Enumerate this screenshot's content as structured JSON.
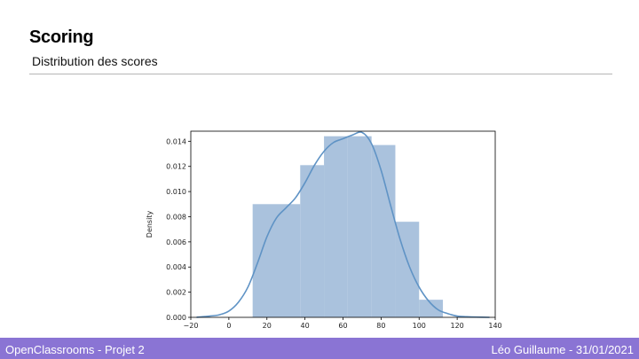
{
  "slide": {
    "title": "Scoring",
    "subtitle": "Distribution des scores"
  },
  "footer": {
    "left": "OpenClassrooms - Projet 2",
    "right": "Léo Guillaume - 31/01/2021"
  },
  "colors": {
    "footer_bg": "#8a74d4",
    "bar_fill": "#a5bfdb",
    "kde_line": "#5f93c5"
  },
  "chart_data": {
    "type": "bar",
    "ylabel": "Density",
    "xlim": [
      -20,
      140
    ],
    "ylim": [
      0,
      0.0148
    ],
    "xticks": [
      -20,
      0,
      20,
      40,
      60,
      80,
      100,
      120,
      140
    ],
    "yticks": [
      0.0,
      0.002,
      0.004,
      0.006,
      0.008,
      0.01,
      0.012,
      0.014
    ],
    "ytick_labels": [
      "0.000",
      "0.002",
      "0.004",
      "0.006",
      "0.008",
      "0.010",
      "0.012",
      "0.014"
    ],
    "bins": [
      {
        "x0": 12.5,
        "x1": 37.5,
        "density": 0.009
      },
      {
        "x0": 37.5,
        "x1": 50.0,
        "density": 0.0121
      },
      {
        "x0": 50.0,
        "x1": 62.5,
        "density": 0.0144
      },
      {
        "x0": 62.5,
        "x1": 75.0,
        "density": 0.0144
      },
      {
        "x0": 75.0,
        "x1": 87.5,
        "density": 0.0137
      },
      {
        "x0": 87.5,
        "x1": 100.0,
        "density": 0.0076
      },
      {
        "x0": 100.0,
        "x1": 112.5,
        "density": 0.0014
      }
    ],
    "kde": {
      "x": [
        -17,
        -10,
        -5,
        0,
        5,
        10,
        15,
        20,
        25,
        30,
        35,
        40,
        45,
        50,
        55,
        60,
        65,
        70,
        75,
        80,
        85,
        90,
        95,
        100,
        105,
        110,
        115,
        120,
        125,
        130,
        137
      ],
      "y": [
        0.0,
        0.0001,
        0.0002,
        0.0005,
        0.0012,
        0.0024,
        0.0043,
        0.0064,
        0.0079,
        0.0087,
        0.0095,
        0.0107,
        0.0121,
        0.0132,
        0.0139,
        0.0142,
        0.0145,
        0.0147,
        0.0138,
        0.0117,
        0.0089,
        0.0062,
        0.004,
        0.0024,
        0.0013,
        0.0006,
        0.0003,
        0.0001,
        5e-05,
        2e-05,
        0.0
      ]
    }
  }
}
